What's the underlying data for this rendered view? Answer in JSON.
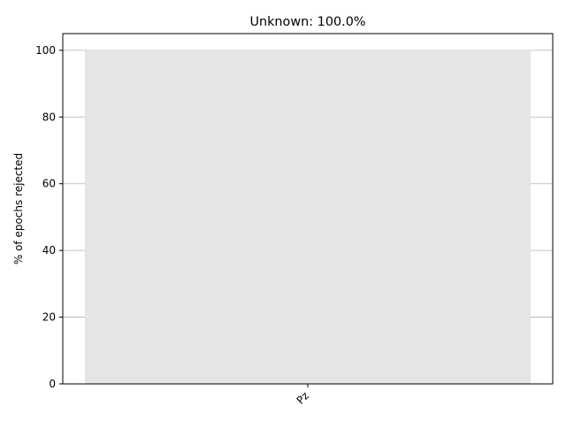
{
  "chart_data": {
    "type": "bar",
    "title": "Unknown: 100.0%",
    "xlabel": "",
    "ylabel": "% of epochs rejected",
    "categories": [
      "Pz"
    ],
    "values": [
      100.0
    ],
    "ylim": [
      0,
      105
    ],
    "yticks": [
      0,
      20,
      40,
      60,
      80,
      100
    ],
    "grid": "horizontal",
    "x_tick_rotation": "45",
    "legend": "none"
  },
  "colors": {
    "bar_fill": "#e5e5e5",
    "grid": "#b0b0b0",
    "axes": "#000000",
    "background": "#ffffff"
  }
}
